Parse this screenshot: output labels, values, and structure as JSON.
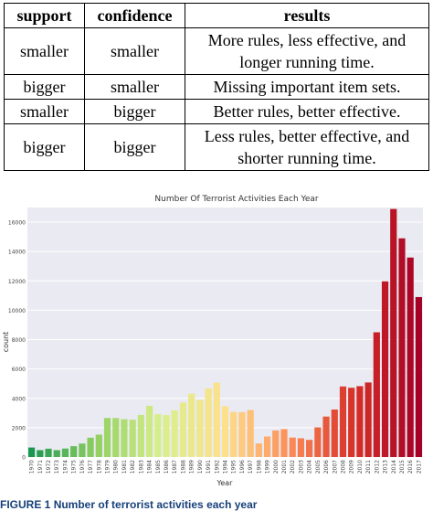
{
  "table": {
    "headers": [
      "support",
      "confidence",
      "results"
    ],
    "rows": [
      [
        "smaller",
        "smaller",
        "More rules, less effective, and longer running time."
      ],
      [
        "bigger",
        "smaller",
        "Missing important item sets."
      ],
      [
        "smaller",
        "bigger",
        "Better rules, better effective."
      ],
      [
        "bigger",
        "bigger",
        "Less rules, better effective, and shorter running time."
      ]
    ]
  },
  "chart_data": {
    "type": "bar",
    "title": "Number Of Terrorist Activities Each Year",
    "xlabel": "Year",
    "ylabel": "count",
    "ylim": [
      0,
      17000
    ],
    "y_ticks": [
      0,
      2000,
      4000,
      6000,
      8000,
      10000,
      12000,
      14000,
      16000
    ],
    "y_tick_labels": [
      "0",
      "2000",
      "4000",
      "6000",
      "8000",
      "10000",
      "12000",
      "14000",
      "16000"
    ],
    "grid": true,
    "categories": [
      "1970",
      "1971",
      "1972",
      "1973",
      "1974",
      "1975",
      "1976",
      "1977",
      "1978",
      "1979",
      "1980",
      "1981",
      "1982",
      "1983",
      "1984",
      "1985",
      "1986",
      "1987",
      "1988",
      "1989",
      "1990",
      "1991",
      "1992",
      "1994",
      "1995",
      "1996",
      "1997",
      "1998",
      "1999",
      "2000",
      "2001",
      "2002",
      "2003",
      "2004",
      "2005",
      "2006",
      "2007",
      "2008",
      "2009",
      "2010",
      "2011",
      "2012",
      "2013",
      "2014",
      "2015",
      "2016",
      "2017"
    ],
    "values": [
      650,
      470,
      570,
      470,
      580,
      740,
      920,
      1320,
      1530,
      2660,
      2660,
      2580,
      2550,
      2870,
      3490,
      2920,
      2860,
      3180,
      3720,
      4320,
      3890,
      4680,
      5070,
      3460,
      3080,
      3060,
      3200,
      930,
      1400,
      1810,
      1900,
      1330,
      1280,
      1170,
      2020,
      2760,
      3240,
      4810,
      4720,
      4830,
      5080,
      8500,
      11970,
      16900,
      14900,
      13590,
      10900
    ],
    "palette": "RdYlGn_r"
  },
  "caption": {
    "prefix": "FIGURE 1",
    "text": "Number of terrorist activities each year"
  }
}
